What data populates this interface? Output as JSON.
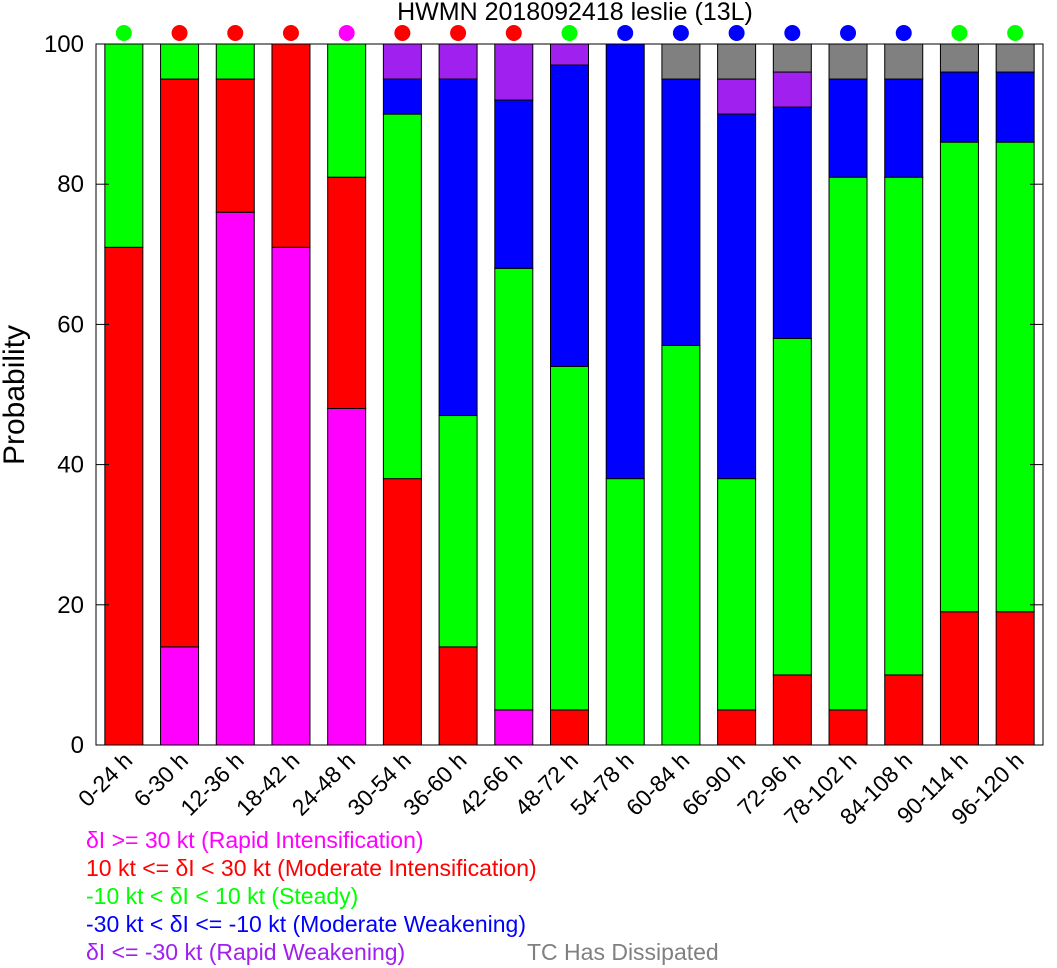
{
  "chart_data": {
    "type": "bar",
    "stacked": true,
    "title": "HWMN 2018092418 leslie (13L)",
    "xlabel": "",
    "ylabel": "Probability",
    "ylim": [
      0,
      100
    ],
    "yticks": [
      0,
      20,
      40,
      60,
      80,
      100
    ],
    "grid": false,
    "categories": [
      "0-24 h",
      "6-30 h",
      "12-36 h",
      "18-42 h",
      "24-48 h",
      "30-54 h",
      "36-60 h",
      "42-66 h",
      "48-72 h",
      "54-78 h",
      "60-84 h",
      "66-90 h",
      "72-96 h",
      "78-102 h",
      "84-108 h",
      "90-114 h",
      "96-120 h"
    ],
    "series": [
      {
        "key": "ri",
        "color": "#ff00ff",
        "values": [
          0,
          14,
          76,
          71,
          48,
          0,
          0,
          5,
          0,
          0,
          0,
          0,
          0,
          0,
          0,
          0,
          0
        ]
      },
      {
        "key": "mi",
        "color": "#ff0000",
        "values": [
          71,
          81,
          19,
          29,
          33,
          38,
          14,
          0,
          5,
          0,
          0,
          5,
          10,
          5,
          10,
          19,
          19
        ]
      },
      {
        "key": "st",
        "color": "#00ff00",
        "values": [
          29,
          5,
          5,
          0,
          19,
          52,
          33,
          63,
          49,
          38,
          57,
          33,
          48,
          76,
          71,
          67,
          67
        ]
      },
      {
        "key": "mw",
        "color": "#0000ff",
        "values": [
          0,
          0,
          0,
          0,
          0,
          5,
          48,
          24,
          43,
          62,
          38,
          52,
          33,
          14,
          14,
          10,
          10
        ]
      },
      {
        "key": "rw",
        "color": "#a020f0",
        "values": [
          0,
          0,
          0,
          0,
          0,
          5,
          5,
          8,
          3,
          0,
          0,
          5,
          5,
          0,
          0,
          0,
          0
        ]
      },
      {
        "key": "td",
        "color": "#808080",
        "values": [
          0,
          0,
          0,
          0,
          0,
          0,
          0,
          0,
          0,
          0,
          5,
          5,
          4,
          5,
          5,
          4,
          4
        ]
      }
    ],
    "top_markers": [
      "#00ff00",
      "#ff0000",
      "#ff0000",
      "#ff0000",
      "#ff00ff",
      "#ff0000",
      "#ff0000",
      "#ff0000",
      "#00ff00",
      "#0000ff",
      "#0000ff",
      "#0000ff",
      "#0000ff",
      "#0000ff",
      "#0000ff",
      "#00ff00",
      "#00ff00"
    ],
    "legend": [
      {
        "text": "δI >= 30 kt (Rapid Intensification)",
        "color": "#ff00ff"
      },
      {
        "text": "10 kt <= δI < 30 kt (Moderate Intensification)",
        "color": "#ff0000"
      },
      {
        "text": "-10 kt < δI < 10 kt (Steady)",
        "color": "#00ff00"
      },
      {
        "text": "-30 kt < δI <= -10 kt (Moderate Weakening)",
        "color": "#0000ff"
      },
      {
        "text": "δI <= -30 kt (Rapid Weakening)",
        "color": "#a020f0"
      }
    ],
    "dissipated_label": {
      "text": "TC Has Dissipated",
      "color": "#808080"
    }
  }
}
